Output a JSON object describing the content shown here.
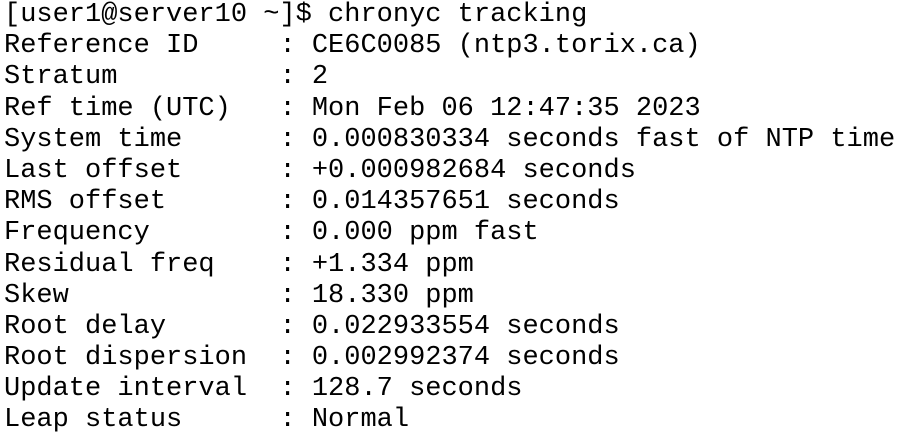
{
  "terminal": {
    "prompt_line": "[user1@server10 ~]$ chronyc tracking",
    "lines": [
      "Reference ID     : CE6C0085 (ntp3.torix.ca)",
      "Stratum          : 2",
      "Ref time (UTC)   : Mon Feb 06 12:47:35 2023",
      "System time      : 0.000830334 seconds fast of NTP time",
      "Last offset      : +0.000982684 seconds",
      "RMS offset       : 0.014357651 seconds",
      "Frequency        : 0.000 ppm fast",
      "Residual freq    : +1.334 ppm",
      "Skew             : 18.330 ppm",
      "Root delay       : 0.022933554 seconds",
      "Root dispersion  : 0.002992374 seconds",
      "Update interval  : 128.7 seconds",
      "Leap status      : Normal"
    ]
  }
}
